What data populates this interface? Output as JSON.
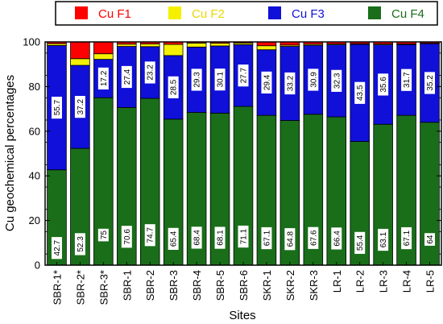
{
  "chart_data": {
    "type": "bar",
    "stacked": true,
    "xlabel": "Sites",
    "ylabel": "Cu geochemical percentages",
    "ylim": [
      0,
      100
    ],
    "yticks": [
      0,
      20,
      40,
      60,
      80,
      100
    ],
    "legend_position": "top",
    "categories": [
      "SBR-1*",
      "SBR-2*",
      "SBR-3*",
      "SBR-1",
      "SBR-2",
      "SBR-3",
      "SBR-4",
      "SBR-5",
      "SBR-6",
      "SKR-1",
      "SKR-2",
      "SKR-3",
      "LR-1",
      "LR-2",
      "LR-3",
      "LR-4",
      "LR-5"
    ],
    "series": [
      {
        "name": "Cu F4",
        "color": "#1a6e1a",
        "values": [
          42.7,
          52.3,
          75,
          70.6,
          74.7,
          65.4,
          68.4,
          68.1,
          71.1,
          67.1,
          64.8,
          67.6,
          66.4,
          55.4,
          63.1,
          67.1,
          64
        ]
      },
      {
        "name": "Cu F3",
        "color": "#1010d8",
        "values": [
          55.7,
          37.2,
          17.2,
          27.4,
          23.2,
          28.5,
          29.3,
          30.1,
          27.7,
          29.4,
          33.2,
          30.9,
          32.3,
          43.5,
          35.6,
          31.7,
          35.2
        ]
      },
      {
        "name": "Cu F2",
        "color": "#f5f000",
        "values": [
          0.8,
          3.0,
          2.5,
          1.0,
          1.2,
          5.0,
          1.8,
          1.2,
          0.7,
          1.8,
          0.6,
          0.5,
          0.4,
          0.3,
          0.4,
          0.3,
          0.2
        ]
      },
      {
        "name": "Cu F1",
        "color": "#ff0000",
        "values": [
          0.8,
          7.5,
          5.3,
          1.0,
          0.9,
          1.1,
          0.5,
          0.6,
          0.5,
          1.7,
          1.4,
          1.0,
          0.9,
          0.8,
          0.9,
          0.9,
          0.6
        ]
      }
    ],
    "labels": {
      "Cu F4": [
        "42.7",
        "52.3",
        "75",
        "70.6",
        "74.7",
        "65.4",
        "68.4",
        "68.1",
        "71.1",
        "67.1",
        "64.8",
        "67.6",
        "66.4",
        "55.4",
        "63.1",
        "67.1",
        "64"
      ],
      "Cu F3": [
        "55.7",
        "37.2",
        "17.2",
        "27.4",
        "23.2",
        "28.5",
        "29.3",
        "30.1",
        "27.7",
        "29.4",
        "33.2",
        "30.9",
        "32.3",
        "43.5",
        "35.6",
        "31.7",
        "35.2"
      ]
    },
    "legend_order": [
      "Cu F1",
      "Cu F2",
      "Cu F3",
      "Cu F4"
    ]
  }
}
